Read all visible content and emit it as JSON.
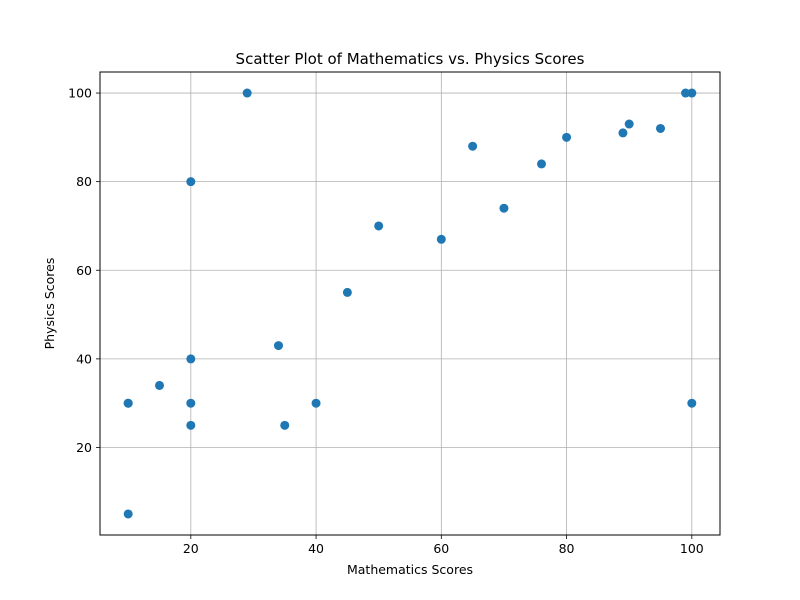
{
  "chart_data": {
    "type": "scatter",
    "title": "Scatter Plot of Mathematics vs. Physics Scores",
    "xlabel": "Mathematics Scores",
    "ylabel": "Physics Scores",
    "xlim": [
      5.5,
      104.5
    ],
    "ylim": [
      0.25,
      104.75
    ],
    "xticks": [
      20,
      40,
      60,
      80,
      100
    ],
    "yticks": [
      20,
      40,
      60,
      80,
      100
    ],
    "grid": true,
    "marker_color": "#1f77b4",
    "points": [
      {
        "x": 29,
        "y": 100
      },
      {
        "x": 20,
        "y": 80
      },
      {
        "x": 20,
        "y": 40
      },
      {
        "x": 10,
        "y": 30
      },
      {
        "x": 10,
        "y": 30
      },
      {
        "x": 15,
        "y": 34
      },
      {
        "x": 20,
        "y": 30
      },
      {
        "x": 20,
        "y": 25
      },
      {
        "x": 10,
        "y": 5
      },
      {
        "x": 34,
        "y": 43
      },
      {
        "x": 35,
        "y": 25
      },
      {
        "x": 40,
        "y": 30
      },
      {
        "x": 45,
        "y": 55
      },
      {
        "x": 50,
        "y": 70
      },
      {
        "x": 60,
        "y": 67
      },
      {
        "x": 65,
        "y": 88
      },
      {
        "x": 70,
        "y": 74
      },
      {
        "x": 76,
        "y": 84
      },
      {
        "x": 80,
        "y": 90
      },
      {
        "x": 89,
        "y": 91
      },
      {
        "x": 90,
        "y": 93
      },
      {
        "x": 95,
        "y": 92
      },
      {
        "x": 99,
        "y": 100
      },
      {
        "x": 100,
        "y": 100
      },
      {
        "x": 100,
        "y": 30
      }
    ]
  }
}
